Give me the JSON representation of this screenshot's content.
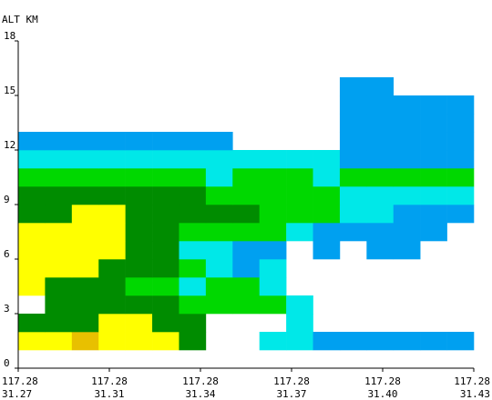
{
  "chart_data": {
    "type": "heatmap",
    "ylabel": "ALT KM",
    "ylim": [
      0,
      18
    ],
    "y_ticks": [
      "0",
      "3",
      "6",
      "9",
      "12",
      "15",
      "18"
    ],
    "x_ticks": [
      {
        "lon": "117.28",
        "lat": "31.27"
      },
      {
        "lon": "117.28",
        "lat": "31.31"
      },
      {
        "lon": "117.28",
        "lat": "31.34"
      },
      {
        "lon": "117.28",
        "lat": "31.37"
      },
      {
        "lon": "117.28",
        "lat": "31.40"
      },
      {
        "lon": "117.28",
        "lat": "31.43"
      }
    ],
    "grid": false,
    "x_cells": 17,
    "y_cells": 18,
    "palette": {
      "1": "#00a0f0",
      "2": "#00e8e8",
      "3": "#00d800",
      "4": "#008c00",
      "5": "#ffff00",
      "6": "#e8c000"
    },
    "rows_bottom_up": [
      "00000000000000000",
      "55655540022111111",
      "44455440002000000",
      "04444433332000000",
      "54443323320000000",
      "55544432120000000",
      "55554422110101100",
      "55554433332111110",
      "44554444433322111",
      "44444443333322222",
      "33333332333233333",
      "22222222222211111",
      "11111111000011111",
      "00000000000011111",
      "00000000000011111",
      "00000000000011000",
      "00000000000000000",
      "00000000000000000"
    ]
  }
}
